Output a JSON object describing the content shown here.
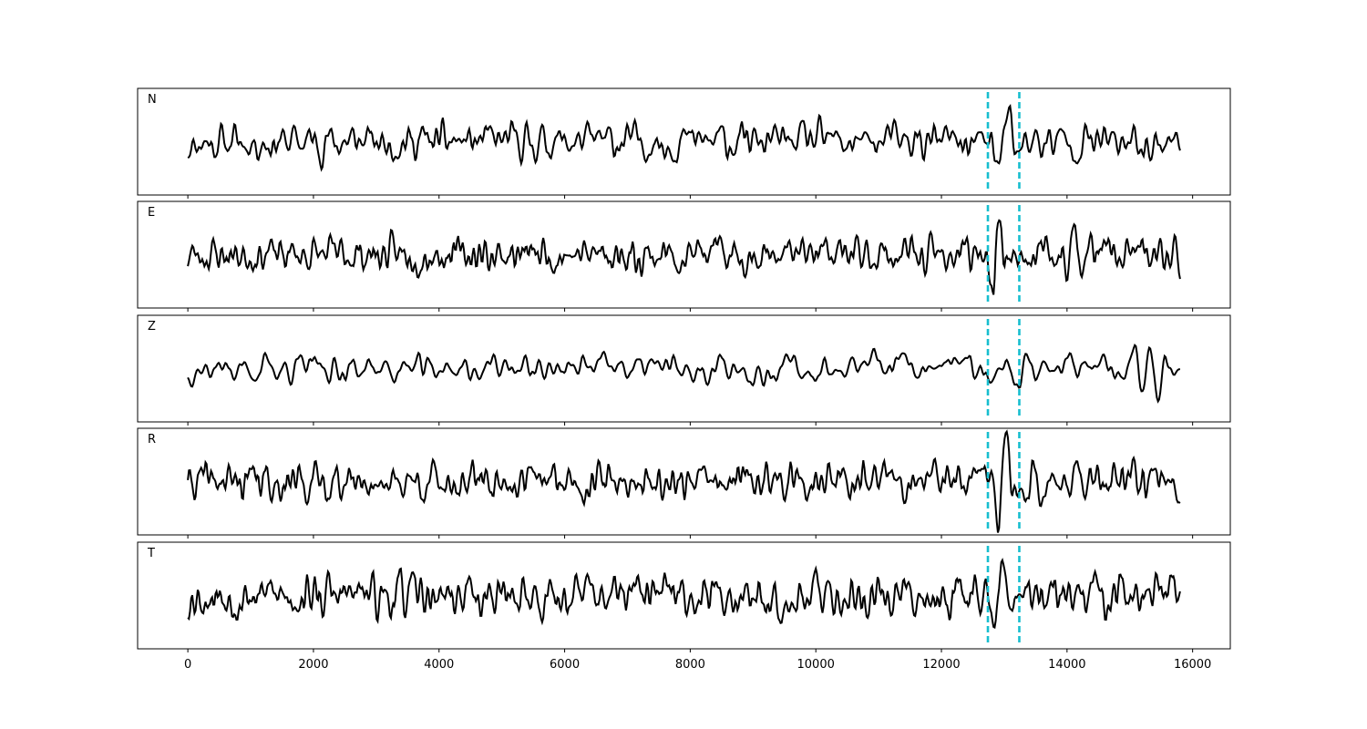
{
  "chart_data": {
    "type": "line",
    "xlim": [
      -800,
      16600
    ],
    "x_ticks": [
      0,
      2000,
      4000,
      6000,
      8000,
      10000,
      12000,
      14000,
      16000
    ],
    "x_tick_labels": [
      "0",
      "2000",
      "4000",
      "6000",
      "8000",
      "10000",
      "12000",
      "14000",
      "16000"
    ],
    "x_range": [
      0,
      15800
    ],
    "grid": false,
    "y_ticks_shown": false,
    "line_color": "#000000",
    "marker_color": "#17becf",
    "pick_markers": [
      12740,
      13240
    ],
    "panels": [
      {
        "label": "N",
        "seed": 11,
        "smooth": 3,
        "noise": 0.45,
        "event_amp": 1.0,
        "event_center": 12980,
        "event_width": 180,
        "burst_center": null,
        "burst_amp": 0
      },
      {
        "label": "E",
        "seed": 23,
        "smooth": 2,
        "noise": 0.4,
        "event_amp": 1.5,
        "event_center": 12860,
        "event_width": 130,
        "burst_center": 14050,
        "burst_amp": 0.6
      },
      {
        "label": "Z",
        "seed": 37,
        "smooth": 5,
        "noise": 0.32,
        "event_amp": 0.6,
        "event_center": 13300,
        "event_width": 200,
        "burst_center": 15250,
        "burst_amp": 1.1
      },
      {
        "label": "R",
        "seed": 41,
        "smooth": 2,
        "noise": 0.4,
        "event_amp": 1.6,
        "event_center": 12960,
        "event_width": 130,
        "burst_center": 14100,
        "burst_amp": 0.8
      },
      {
        "label": "T",
        "seed": 53,
        "smooth": 2,
        "noise": 0.45,
        "event_amp": 1.0,
        "event_center": 12900,
        "event_width": 170,
        "burst_center": null,
        "burst_amp": 0
      }
    ]
  }
}
